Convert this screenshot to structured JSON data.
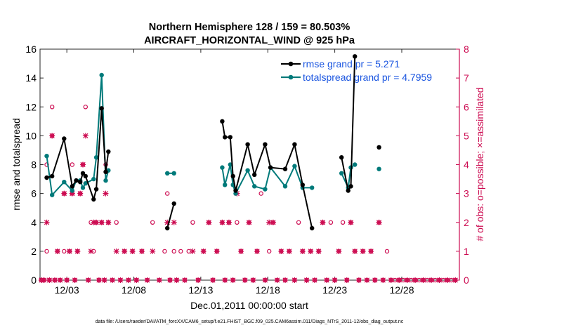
{
  "chart_data": {
    "type": "line",
    "title": "Northern Hemisphere 128 / 159 = 80.503%",
    "subtitle": "AIRCRAFT_HORIZONTAL_WIND @ 925 hPa",
    "xlabel": "Dec.01,2011 00:00:00 start",
    "ylabel_left": "rmse and totalspread",
    "ylabel_right": "# of obs: o=possible; ×=assimilated",
    "footer": "data file: /Users/raeder/DAI/ATM_forcXX/CAM6_setup/f.e21.FHIST_BGC.f09_025.CAM6assim.011/Diags_NTrS_2011-12/obs_diag_output.nc",
    "xlim": [
      0,
      31.3
    ],
    "ylim_left": [
      0,
      16
    ],
    "ylim_right": [
      0,
      8
    ],
    "x_ticks": [
      {
        "v": 2,
        "label": "12/03"
      },
      {
        "v": 7,
        "label": "12/08"
      },
      {
        "v": 12,
        "label": "12/13"
      },
      {
        "v": 17,
        "label": "12/18"
      },
      {
        "v": 22,
        "label": "12/23"
      },
      {
        "v": 27,
        "label": "12/28"
      }
    ],
    "y_ticks_left": [
      "0",
      "2",
      "4",
      "6",
      "8",
      "10",
      "12",
      "14",
      "16"
    ],
    "y_ticks_right": [
      "0",
      "1",
      "2",
      "3",
      "4",
      "5",
      "6",
      "7",
      "8"
    ],
    "colors": {
      "rmse": "#000000",
      "spread": "#007a7a",
      "obs": "#cc0a50",
      "legend_text": "#1a55e0"
    },
    "series": [
      {
        "name": "rmse grand pr = 5.271",
        "key": "rmse",
        "points": [
          [
            0.5,
            7.1
          ],
          [
            0.9,
            7.2
          ],
          [
            1.8,
            9.8
          ],
          [
            2.4,
            6.5
          ],
          [
            2.7,
            6.9
          ],
          [
            3.0,
            6.8
          ],
          [
            3.2,
            7.4
          ],
          [
            3.4,
            7.2
          ],
          [
            4.0,
            5.6
          ],
          [
            4.2,
            6.3
          ],
          [
            4.6,
            11.9
          ],
          [
            4.9,
            7.5
          ],
          [
            5.1,
            8.9
          ],
          [
            9.5,
            3.6
          ],
          [
            10.0,
            5.3
          ],
          [
            13.6,
            11.0
          ],
          [
            13.8,
            9.9
          ],
          [
            14.2,
            9.9
          ],
          [
            14.4,
            7.2
          ],
          [
            14.6,
            6.2
          ],
          [
            15.5,
            9.4
          ],
          [
            16.0,
            7.3
          ],
          [
            16.8,
            9.4
          ],
          [
            17.2,
            7.8
          ],
          [
            18.3,
            7.7
          ],
          [
            19.0,
            9.4
          ],
          [
            19.6,
            6.6
          ],
          [
            20.3,
            3.6
          ],
          [
            22.5,
            8.5
          ],
          [
            23.0,
            6.2
          ],
          [
            23.2,
            6.5
          ],
          [
            23.5,
            15.5
          ],
          [
            25.3,
            9.2
          ]
        ]
      },
      {
        "name": "totalspread grand pr = 4.7959",
        "key": "spread",
        "points": [
          [
            0.5,
            8.6
          ],
          [
            0.9,
            5.9
          ],
          [
            1.8,
            6.8
          ],
          [
            2.4,
            6.2
          ],
          [
            2.7,
            6.9
          ],
          [
            3.0,
            6.9
          ],
          [
            3.2,
            6.4
          ],
          [
            3.4,
            6.7
          ],
          [
            4.0,
            7.0
          ],
          [
            4.2,
            8.5
          ],
          [
            4.6,
            14.2
          ],
          [
            4.9,
            6.9
          ],
          [
            5.1,
            7.6
          ],
          [
            9.5,
            7.4
          ],
          [
            10.0,
            7.4
          ],
          [
            13.6,
            7.8
          ],
          [
            13.8,
            6.6
          ],
          [
            14.2,
            8.0
          ],
          [
            14.4,
            6.6
          ],
          [
            14.6,
            6.0
          ],
          [
            15.5,
            7.6
          ],
          [
            16.0,
            6.5
          ],
          [
            16.8,
            6.3
          ],
          [
            17.2,
            7.8
          ],
          [
            18.3,
            6.5
          ],
          [
            19.0,
            7.9
          ],
          [
            19.6,
            6.4
          ],
          [
            20.3,
            6.4
          ],
          [
            22.5,
            7.4
          ],
          [
            23.0,
            6.4
          ],
          [
            23.2,
            7.8
          ],
          [
            23.5,
            8.0
          ],
          [
            25.3,
            7.7
          ]
        ]
      },
      {
        "name": "obs possible",
        "key": "possible",
        "points": [
          [
            0.1,
            0
          ],
          [
            0.3,
            0
          ],
          [
            0.5,
            1
          ],
          [
            0.5,
            4
          ],
          [
            0.7,
            0
          ],
          [
            0.9,
            5
          ],
          [
            0.9,
            6
          ],
          [
            1.1,
            0
          ],
          [
            1.3,
            1
          ],
          [
            1.5,
            0
          ],
          [
            1.8,
            1
          ],
          [
            1.8,
            3
          ],
          [
            2.0,
            0
          ],
          [
            2.2,
            1
          ],
          [
            2.4,
            3
          ],
          [
            2.4,
            4
          ],
          [
            2.6,
            0
          ],
          [
            2.8,
            1
          ],
          [
            3.0,
            3
          ],
          [
            3.2,
            4
          ],
          [
            3.4,
            6
          ],
          [
            3.6,
            0
          ],
          [
            3.8,
            2
          ],
          [
            4.0,
            1
          ],
          [
            4.2,
            2
          ],
          [
            4.4,
            0
          ],
          [
            4.6,
            2
          ],
          [
            4.8,
            0
          ],
          [
            4.9,
            4
          ],
          [
            5.1,
            2
          ],
          [
            5.4,
            0
          ],
          [
            5.7,
            2
          ],
          [
            6.0,
            0
          ],
          [
            6.3,
            1
          ],
          [
            6.6,
            0
          ],
          [
            6.9,
            1
          ],
          [
            7.2,
            0
          ],
          [
            7.6,
            1
          ],
          [
            8.0,
            0
          ],
          [
            8.4,
            2
          ],
          [
            8.9,
            0
          ],
          [
            9.3,
            1
          ],
          [
            9.5,
            3
          ],
          [
            9.7,
            0
          ],
          [
            10.0,
            1
          ],
          [
            10.2,
            0
          ],
          [
            10.5,
            1
          ],
          [
            10.8,
            0
          ],
          [
            11.1,
            1
          ],
          [
            11.4,
            2
          ],
          [
            11.8,
            0
          ],
          [
            12.2,
            1
          ],
          [
            12.6,
            2
          ],
          [
            12.9,
            0
          ],
          [
            13.2,
            1
          ],
          [
            13.6,
            2
          ],
          [
            13.8,
            0
          ],
          [
            14.1,
            2
          ],
          [
            14.4,
            0
          ],
          [
            14.7,
            2
          ],
          [
            15.0,
            1
          ],
          [
            15.3,
            0
          ],
          [
            15.6,
            2
          ],
          [
            15.9,
            0
          ],
          [
            16.2,
            1
          ],
          [
            16.5,
            3
          ],
          [
            16.8,
            0
          ],
          [
            17.1,
            1
          ],
          [
            17.4,
            2
          ],
          [
            17.7,
            0
          ],
          [
            18.0,
            1
          ],
          [
            18.3,
            0
          ],
          [
            18.6,
            1
          ],
          [
            19.0,
            0
          ],
          [
            19.3,
            2
          ],
          [
            19.6,
            1
          ],
          [
            19.9,
            0
          ],
          [
            20.2,
            1
          ],
          [
            20.5,
            0
          ],
          [
            20.8,
            1
          ],
          [
            21.1,
            2
          ],
          [
            21.4,
            0
          ],
          [
            21.7,
            2
          ],
          [
            22.0,
            0
          ],
          [
            22.3,
            1
          ],
          [
            22.6,
            2
          ],
          [
            22.9,
            0
          ],
          [
            23.2,
            2
          ],
          [
            23.5,
            1
          ],
          [
            23.8,
            0
          ],
          [
            24.1,
            1
          ],
          [
            24.4,
            0
          ],
          [
            24.7,
            1
          ],
          [
            25.0,
            0
          ],
          [
            25.3,
            2
          ],
          [
            25.6,
            0
          ],
          [
            25.9,
            1
          ],
          [
            26.2,
            0
          ],
          [
            26.5,
            0
          ],
          [
            26.8,
            0
          ],
          [
            27.1,
            0
          ],
          [
            27.4,
            0
          ],
          [
            27.7,
            0
          ],
          [
            28.0,
            0
          ],
          [
            28.3,
            0
          ],
          [
            28.6,
            0
          ],
          [
            28.9,
            0
          ],
          [
            29.2,
            0
          ],
          [
            29.5,
            0
          ],
          [
            29.8,
            0
          ],
          [
            30.1,
            0
          ],
          [
            30.4,
            0
          ],
          [
            30.7,
            0
          ],
          [
            31.0,
            0
          ]
        ]
      },
      {
        "name": "obs assimilated",
        "key": "assimilated",
        "points": [
          [
            0.1,
            0
          ],
          [
            0.3,
            0
          ],
          [
            0.5,
            2
          ],
          [
            0.7,
            0
          ],
          [
            0.9,
            5
          ],
          [
            1.1,
            0
          ],
          [
            1.3,
            1
          ],
          [
            1.5,
            0
          ],
          [
            1.8,
            3
          ],
          [
            2.0,
            0
          ],
          [
            2.2,
            1
          ],
          [
            2.4,
            3
          ],
          [
            2.6,
            0
          ],
          [
            2.8,
            1
          ],
          [
            3.0,
            3
          ],
          [
            3.2,
            4
          ],
          [
            3.4,
            5
          ],
          [
            3.6,
            0
          ],
          [
            3.8,
            1
          ],
          [
            4.0,
            2
          ],
          [
            4.2,
            2
          ],
          [
            4.4,
            0
          ],
          [
            4.6,
            2
          ],
          [
            4.8,
            0
          ],
          [
            4.9,
            3
          ],
          [
            5.1,
            2
          ],
          [
            5.4,
            0
          ],
          [
            5.7,
            1
          ],
          [
            6.0,
            0
          ],
          [
            6.3,
            1
          ],
          [
            6.6,
            0
          ],
          [
            6.9,
            1
          ],
          [
            7.2,
            0
          ],
          [
            7.6,
            1
          ],
          [
            8.0,
            0
          ],
          [
            8.4,
            1
          ],
          [
            8.9,
            0
          ],
          [
            9.5,
            2
          ],
          [
            9.7,
            0
          ],
          [
            10.0,
            2
          ],
          [
            10.2,
            0
          ],
          [
            10.8,
            0
          ],
          [
            11.4,
            1
          ],
          [
            11.8,
            0
          ],
          [
            12.2,
            1
          ],
          [
            12.6,
            2
          ],
          [
            12.9,
            0
          ],
          [
            13.2,
            1
          ],
          [
            13.6,
            2
          ],
          [
            13.8,
            0
          ],
          [
            14.1,
            2
          ],
          [
            14.4,
            0
          ],
          [
            14.7,
            3
          ],
          [
            15.0,
            1
          ],
          [
            15.3,
            0
          ],
          [
            15.6,
            2
          ],
          [
            15.9,
            0
          ],
          [
            16.2,
            1
          ],
          [
            16.8,
            0
          ],
          [
            17.1,
            2
          ],
          [
            17.4,
            2
          ],
          [
            17.7,
            0
          ],
          [
            18.0,
            1
          ],
          [
            18.3,
            0
          ],
          [
            18.6,
            1
          ],
          [
            19.0,
            0
          ],
          [
            19.6,
            1
          ],
          [
            19.9,
            0
          ],
          [
            20.2,
            1
          ],
          [
            20.5,
            0
          ],
          [
            20.8,
            1
          ],
          [
            21.1,
            2
          ],
          [
            21.4,
            0
          ],
          [
            22.0,
            0
          ],
          [
            22.3,
            1
          ],
          [
            22.9,
            0
          ],
          [
            23.2,
            2
          ],
          [
            23.5,
            1
          ],
          [
            23.8,
            0
          ],
          [
            24.1,
            1
          ],
          [
            24.4,
            0
          ],
          [
            24.7,
            1
          ],
          [
            25.0,
            0
          ],
          [
            25.3,
            2
          ],
          [
            25.6,
            0
          ],
          [
            26.2,
            0
          ],
          [
            26.8,
            0
          ],
          [
            27.4,
            0
          ],
          [
            28.0,
            0
          ],
          [
            28.6,
            0
          ],
          [
            29.2,
            0
          ],
          [
            29.8,
            0
          ],
          [
            30.4,
            0
          ],
          [
            31.0,
            0
          ]
        ]
      }
    ]
  }
}
